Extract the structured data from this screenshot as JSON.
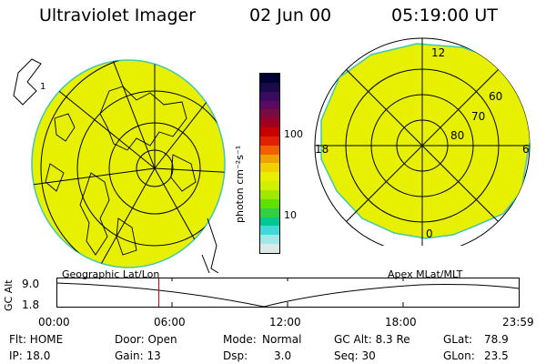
{
  "header": {
    "title": "Ultraviolet Imager",
    "date": "02 Jun 00",
    "time": "05:19:00  UT"
  },
  "colorbar": {
    "unit_label": "photon cm⁻²s⁻¹",
    "ticks": [
      "100",
      "10"
    ],
    "colors": [
      "#000033",
      "#1a0a4a",
      "#3a0a60",
      "#5a0a60",
      "#7a0a40",
      "#a00020",
      "#c80000",
      "#e02000",
      "#f06000",
      "#f0a000",
      "#f0d000",
      "#e8f000",
      "#d0f000",
      "#a0e800",
      "#60e000",
      "#30d040",
      "#00c890",
      "#40d8d8",
      "#a0e8e8",
      "#dde8e8"
    ]
  },
  "maps": {
    "fill_color": "#e6f000",
    "left_label": "Geographic Lat/Lon",
    "right_label": "Apex MLat/MLT",
    "mlt_labels": {
      "top": "12",
      "left": "18",
      "right": "6",
      "bottom": "0"
    },
    "mlat_labels": [
      "60",
      "70",
      "80"
    ]
  },
  "altitude_panel": {
    "title": "GC Alt",
    "y_top": "9.0",
    "y_bottom": "1.8",
    "time_ticks": [
      "00:00",
      "06:00",
      "12:00",
      "18:00",
      "23:59"
    ],
    "marker_fraction": 0.22,
    "marker_color": "#cc0000"
  },
  "status": {
    "flt": "Flt: HOME",
    "ip": "IP: 18.0",
    "door": "Door: Open",
    "gain": "Gain: 13",
    "mode_label": "Mode:",
    "mode_value": "Normal",
    "dsp_label": "Dsp:",
    "dsp_value": "3.0",
    "gcalt": "GC Alt: 8.3 Re",
    "seq": "Seq: 30",
    "glat_label": "GLat:",
    "glat_value": "78.9",
    "glon_label": "GLon:",
    "glon_value": "23.5"
  }
}
